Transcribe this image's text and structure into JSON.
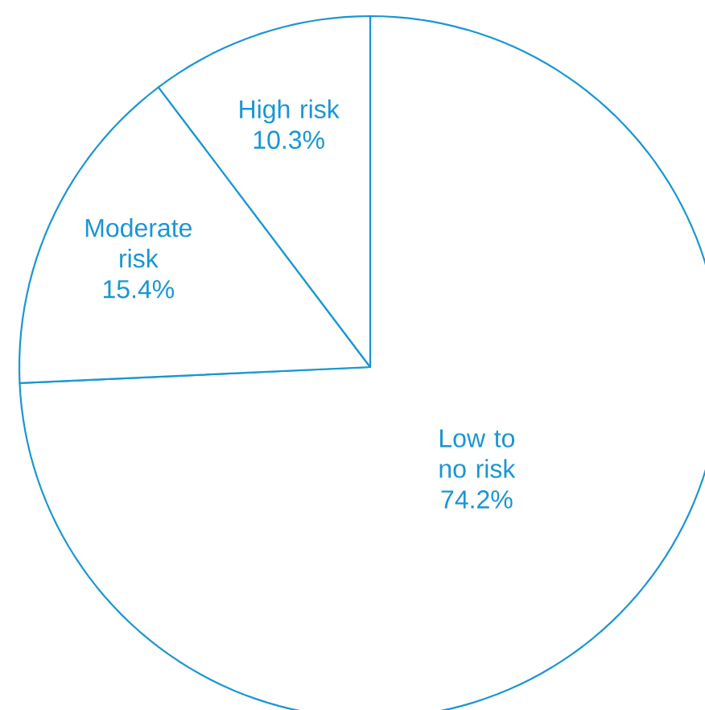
{
  "chart_data": {
    "type": "pie",
    "categories": [
      "Low to no risk",
      "Moderate risk",
      "High risk"
    ],
    "values": [
      74.2,
      15.4,
      10.3
    ],
    "value_labels": [
      "74.2%",
      "15.4%",
      "10.3%"
    ]
  }
}
